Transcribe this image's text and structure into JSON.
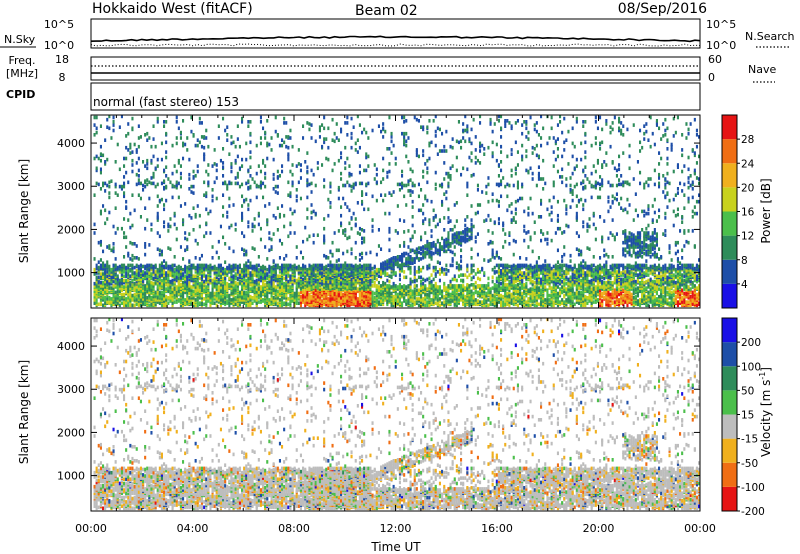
{
  "header": {
    "title": "Hokkaido West (fitACF)",
    "beam": "Beam 02",
    "date": "08/Sep/2016"
  },
  "panels": {
    "nsky": {
      "label": "N.Sky",
      "left_ticks": [
        "10^5",
        "10^0"
      ],
      "right_ticks": [
        "10^5",
        "10^0"
      ],
      "right_label": "N.Search"
    },
    "freq": {
      "label_line1": "Freq.",
      "label_line2": "[MHz]",
      "left_ticks": [
        "18",
        "8"
      ],
      "right_ticks": [
        "60",
        "0"
      ],
      "right_label": "Nave"
    },
    "cpid": {
      "label": "CPID",
      "text": "normal (fast stereo) 153"
    }
  },
  "chart_data": [
    {
      "type": "heatmap",
      "name": "power",
      "ylabel": "Slant Range [km]",
      "yticks": [
        "1000",
        "2000",
        "3000",
        "4000"
      ],
      "ylim": [
        180,
        4650
      ],
      "xlim": [
        0,
        24
      ],
      "colorbar_label": "Power [dB]",
      "colorbar_ticks": [
        "4",
        "8",
        "12",
        "16",
        "20",
        "24",
        "28"
      ],
      "colors": [
        "#1a10e6",
        "#1e4fa8",
        "#2e8c5a",
        "#4bbf4b",
        "#c8d21e",
        "#f0b01e",
        "#f06e14",
        "#e61414"
      ]
    },
    {
      "type": "heatmap",
      "name": "velocity",
      "ylabel": "Slant Range [km]",
      "yticks": [
        "1000",
        "2000",
        "3000",
        "4000"
      ],
      "ylim": [
        180,
        4650
      ],
      "xlim": [
        0,
        24
      ],
      "colorbar_label": "Velocity [m s^-1]",
      "colorbar_ticks": [
        "200",
        "100",
        "50",
        "15",
        "-15",
        "-50",
        "-100",
        "-200"
      ],
      "colors": [
        "#1a10e6",
        "#1e4fa8",
        "#2e8c5a",
        "#4bbf4b",
        "#bdbdbd",
        "#f0b01e",
        "#f06e14",
        "#e61414"
      ]
    }
  ],
  "xaxis": {
    "ticks": [
      "00:00",
      "04:00",
      "08:00",
      "12:00",
      "16:00",
      "20:00",
      "00:00"
    ],
    "label": "Time UT"
  }
}
